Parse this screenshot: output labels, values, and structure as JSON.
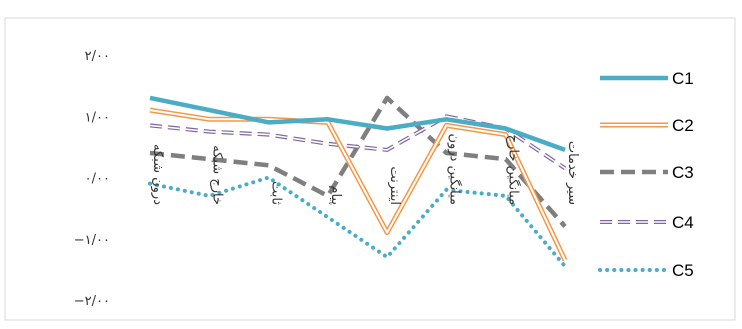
{
  "chart_data": {
    "type": "line",
    "title": "",
    "xlabel": "",
    "ylabel": "",
    "ylim": [
      -2,
      2
    ],
    "y_ticks": [
      {
        "value": 2,
        "label": "۲/۰۰"
      },
      {
        "value": 1,
        "label": "۱/۰۰"
      },
      {
        "value": 0,
        "label": "۰/۰۰"
      },
      {
        "value": -1,
        "label": "−۱/۰۰"
      },
      {
        "value": -2,
        "label": "−۲/۰۰"
      }
    ],
    "grid": false,
    "legend": "right",
    "categories": [
      "درون شبکه",
      "خارج شبکه",
      "ثابت",
      "پیام",
      "اینترنت",
      "میانگین درون",
      "میانگین خارج",
      "سیر خدمات"
    ],
    "series": [
      {
        "name": "C1",
        "color": "#4BACC6",
        "style": "solid-thick",
        "values": [
          1.3,
          1.1,
          0.9,
          0.95,
          0.8,
          0.95,
          0.8,
          0.45
        ]
      },
      {
        "name": "C2",
        "color": "#F79646",
        "style": "double",
        "values": [
          1.1,
          0.95,
          0.95,
          0.9,
          -0.9,
          0.85,
          0.7,
          -1.35
        ]
      },
      {
        "name": "C3",
        "color": "#7F7F7F",
        "style": "dashed-thick",
        "values": [
          0.4,
          0.3,
          0.2,
          -0.3,
          1.3,
          0.4,
          0.3,
          -0.8
        ]
      },
      {
        "name": "C4",
        "color": "#8064A2",
        "style": "double-dashed",
        "values": [
          0.85,
          0.75,
          0.7,
          0.55,
          0.45,
          1.0,
          0.8,
          0.15
        ]
      },
      {
        "name": "C5",
        "color": "#4BACC6",
        "style": "dotted",
        "values": [
          -0.1,
          -0.3,
          0.0,
          -0.65,
          -1.3,
          -0.2,
          -0.3,
          -1.45
        ]
      }
    ]
  }
}
